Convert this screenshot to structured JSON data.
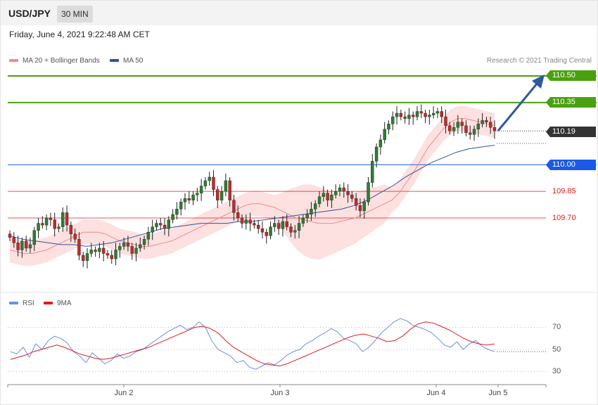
{
  "header": {
    "pair": "USD/JPY",
    "timeframe": "30 MIN",
    "timestamp": "Friday, June 4, 2021 9:22:48 AM CET"
  },
  "legend": {
    "ma20": "MA 20 + Bollinger Bands",
    "ma50": "MA 50",
    "rsi": "RSI",
    "rsi_ma": "9MA"
  },
  "credit": "Research © 2021 Trading Central",
  "colors": {
    "target": "#4aa10f",
    "pivot": "#1a5ae6",
    "support": "#e01b1b",
    "current": "#333333",
    "arrow": "#2c5aa0",
    "bb_fill": "#fde0e0",
    "ma20": "#f08a8a",
    "ma50": "#2f5597",
    "candle_up": "#2e7d32",
    "candle_down": "#c62828",
    "rsi": "#6b8fe8",
    "rsi_ma": "#e01b1b"
  },
  "chart_data": [
    {
      "type": "candlestick",
      "title": "USD/JPY",
      "ylim": [
        109.46,
        110.54
      ],
      "x_ticks": [
        "Jun 2",
        "Jun 3",
        "Jun 4",
        "Jun 5"
      ],
      "levels": [
        {
          "value": 110.5,
          "label": "110.50",
          "kind": "resistance"
        },
        {
          "value": 110.35,
          "label": "110.35",
          "kind": "resistance"
        },
        {
          "value": 110.19,
          "label": "110.19",
          "kind": "current"
        },
        {
          "value": 110.0,
          "label": "110.00",
          "kind": "pivot"
        },
        {
          "value": 109.85,
          "label": "109.85",
          "kind": "support"
        },
        {
          "value": 109.7,
          "label": "109.70",
          "kind": "support"
        }
      ],
      "closes": [
        109.59,
        109.56,
        109.52,
        109.57,
        109.53,
        109.55,
        109.63,
        109.67,
        109.66,
        109.7,
        109.69,
        109.64,
        109.65,
        109.73,
        109.66,
        109.61,
        109.58,
        109.49,
        109.46,
        109.5,
        109.52,
        109.51,
        109.53,
        109.5,
        109.49,
        109.47,
        109.52,
        109.54,
        109.56,
        109.54,
        109.5,
        109.53,
        109.55,
        109.58,
        109.62,
        109.65,
        109.67,
        109.66,
        109.64,
        109.69,
        109.72,
        109.75,
        109.79,
        109.81,
        109.8,
        109.83,
        109.84,
        109.88,
        109.91,
        109.93,
        109.86,
        109.8,
        109.85,
        109.91,
        109.8,
        109.73,
        109.7,
        109.67,
        109.69,
        109.67,
        109.66,
        109.64,
        109.62,
        109.6,
        109.65,
        109.67,
        109.64,
        109.68,
        109.65,
        109.62,
        109.63,
        109.67,
        109.7,
        109.72,
        109.75,
        109.78,
        109.82,
        109.84,
        109.8,
        109.83,
        109.85,
        109.87,
        109.85,
        109.83,
        109.81,
        109.77,
        109.74,
        109.79,
        109.9,
        110.02,
        110.1,
        110.14,
        110.2,
        110.23,
        110.27,
        110.29,
        110.27,
        110.26,
        110.28,
        110.27,
        110.3,
        110.29,
        110.27,
        110.28,
        110.29,
        110.3,
        110.27,
        110.22,
        110.19,
        110.21,
        110.24,
        110.22,
        110.18,
        110.17,
        110.2,
        110.23,
        110.25,
        110.24,
        110.21,
        110.19
      ],
      "ma20": [
        109.52,
        109.51,
        109.5,
        109.5,
        109.51,
        109.52,
        109.54,
        109.56,
        109.58,
        109.6,
        109.62,
        109.62,
        109.62,
        109.61,
        109.59,
        109.57,
        109.56,
        109.55,
        109.54,
        109.54,
        109.55,
        109.56,
        109.57,
        109.59,
        109.61,
        109.63,
        109.65,
        109.67,
        109.69,
        109.71,
        109.73,
        109.75,
        109.77,
        109.78,
        109.78,
        109.77,
        109.76,
        109.74,
        109.72,
        109.7,
        109.69,
        109.68,
        109.67,
        109.67,
        109.67,
        109.68,
        109.69,
        109.7,
        109.72,
        109.74,
        109.76,
        109.78,
        109.8,
        109.84,
        109.9,
        109.96,
        110.03,
        110.1,
        110.15,
        110.2,
        110.24,
        110.26,
        110.26,
        110.25,
        110.24,
        110.23,
        110.22
      ],
      "ma50": [
        109.6,
        109.58,
        109.57,
        109.56,
        109.55,
        109.55,
        109.54,
        109.55,
        109.56,
        109.58,
        109.6,
        109.62,
        109.64,
        109.65,
        109.66,
        109.67,
        109.67,
        109.67,
        109.68,
        109.68,
        109.69,
        109.7,
        109.71,
        109.72,
        109.73,
        109.74,
        109.75,
        109.77,
        109.8,
        109.84,
        109.88,
        109.93,
        109.97,
        110.01,
        110.04,
        110.07,
        110.09,
        110.1,
        110.11
      ]
    },
    {
      "type": "line",
      "title": "RSI",
      "ylim": [
        20,
        80
      ],
      "y_ticks": [
        30,
        50,
        70
      ],
      "series": [
        {
          "name": "RSI",
          "values": [
            48,
            46,
            52,
            43,
            55,
            50,
            58,
            62,
            60,
            56,
            48,
            44,
            38,
            47,
            42,
            37,
            40,
            46,
            42,
            44,
            48,
            50,
            54,
            58,
            62,
            66,
            69,
            72,
            68,
            70,
            75,
            70,
            58,
            50,
            47,
            44,
            38,
            40,
            34,
            32,
            35,
            38,
            36,
            40,
            45,
            48,
            50,
            55,
            58,
            62,
            65,
            69,
            66,
            60,
            58,
            55,
            48,
            52,
            58,
            65,
            70,
            75,
            78,
            76,
            72,
            70,
            68,
            65,
            60,
            54,
            52,
            57,
            50,
            55,
            58,
            53,
            50,
            48
          ]
        },
        {
          "name": "9MA",
          "values": [
            41,
            43,
            45,
            48,
            50,
            52,
            54,
            52,
            49,
            46,
            44,
            42,
            41,
            42,
            44,
            46,
            48,
            50,
            52,
            55,
            58,
            61,
            64,
            67,
            70,
            71,
            69,
            65,
            58,
            52,
            48,
            44,
            40,
            37,
            36,
            35,
            37,
            40,
            43,
            46,
            49,
            52,
            55,
            58,
            61,
            63,
            64,
            62,
            60,
            57,
            58,
            62,
            68,
            73,
            75,
            74,
            71,
            68,
            64,
            60,
            57,
            55,
            54,
            55
          ]
        }
      ]
    }
  ]
}
